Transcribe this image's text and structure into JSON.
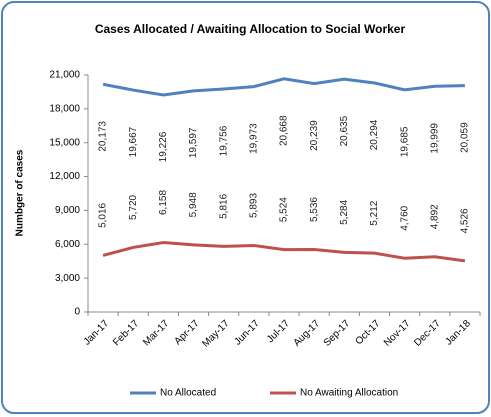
{
  "chart_data": {
    "type": "line",
    "title": "Cases Allocated / Awaiting Allocation to Social Worker",
    "y_label": "Numbger of cases",
    "categories": [
      "Jan-17",
      "Feb-17",
      "Mar-17",
      "Apr-17",
      "May-17",
      "Jun-17",
      "Jul-17",
      "Aug-17",
      "Sep-17",
      "Oct-17",
      "Nov-17",
      "Dec-17",
      "Jan-18"
    ],
    "series": [
      {
        "name": "No Allocated",
        "color": "#4f81bd",
        "values": [
          20173,
          19667,
          19226,
          19597,
          19756,
          19973,
          20668,
          20239,
          20635,
          20294,
          19685,
          19999,
          20059
        ],
        "value_labels": [
          "20,173",
          "19,667",
          "19,226",
          "19,597",
          "19,756",
          "19,973",
          "20,668",
          "20,239",
          "20,635",
          "20,294",
          "19,685",
          "19,999",
          "20,059"
        ]
      },
      {
        "name": "No Awaiting Allocation",
        "color": "#c0504d",
        "values": [
          5016,
          5720,
          6158,
          5948,
          5816,
          5893,
          5524,
          5536,
          5284,
          5212,
          4760,
          4892,
          4526
        ],
        "value_labels": [
          "5,016",
          "5,720",
          "6,158",
          "5,948",
          "5,816",
          "5,893",
          "5,524",
          "5,536",
          "5,284",
          "5,212",
          "4,760",
          "4,892",
          "4,526"
        ]
      }
    ],
    "ylim": [
      0,
      21000
    ],
    "yticks": [
      0,
      {
        "value": 3000,
        "label": "3,000"
      },
      {
        "value": 6000,
        "label": "6,000"
      },
      {
        "value": 9000,
        "label": "9,000"
      },
      {
        "value": 12000,
        "label": "12,000"
      },
      {
        "value": 15000,
        "label": "15,000"
      },
      {
        "value": 18000,
        "label": "18,000"
      },
      {
        "value": 21000,
        "label": "21,000"
      }
    ],
    "legend": "bottom"
  }
}
